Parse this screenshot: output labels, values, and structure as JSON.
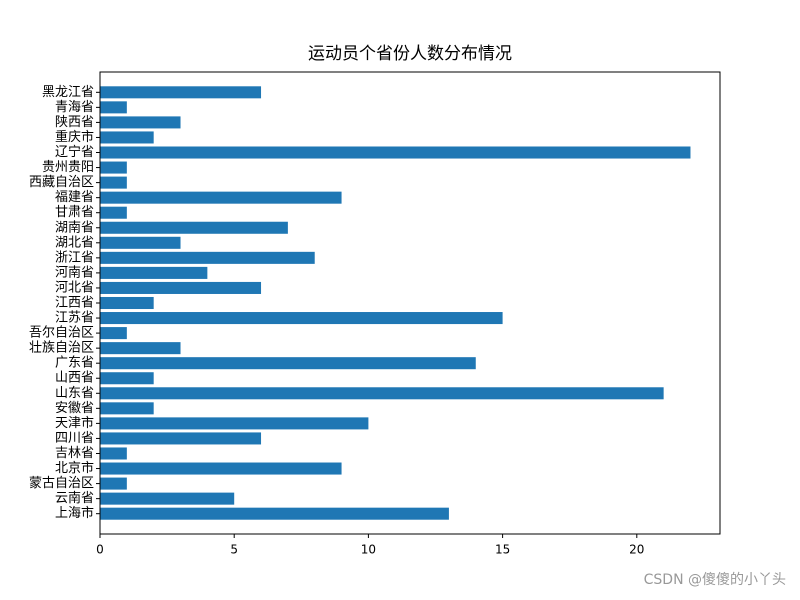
{
  "chart_data": {
    "type": "barh",
    "title": "运动员个省份人数分布情况",
    "categories": [
      "上海市",
      "云南省",
      "蒙古自治区",
      "北京市",
      "吉林省",
      "四川省",
      "天津市",
      "安徽省",
      "山东省",
      "山西省",
      "广东省",
      "壮族自治区",
      "吾尔自治区",
      "江苏省",
      "江西省",
      "河北省",
      "河南省",
      "浙江省",
      "湖北省",
      "湖南省",
      "甘肃省",
      "福建省",
      "西藏自治区",
      "贵州贵阳",
      "辽宁省",
      "重庆市",
      "陕西省",
      "青海省",
      "黑龙江省"
    ],
    "values": [
      13,
      5,
      1,
      9,
      1,
      6,
      10,
      2,
      21,
      2,
      14,
      3,
      1,
      15,
      2,
      6,
      4,
      8,
      3,
      7,
      1,
      9,
      1,
      1,
      22,
      2,
      3,
      1,
      6
    ],
    "color": "#1f77b4",
    "xlim": [
      0,
      23.1
    ],
    "xticks": [
      0,
      5,
      10,
      15,
      20
    ],
    "grid": false
  },
  "watermark": "CSDN @傻傻的小丫头"
}
